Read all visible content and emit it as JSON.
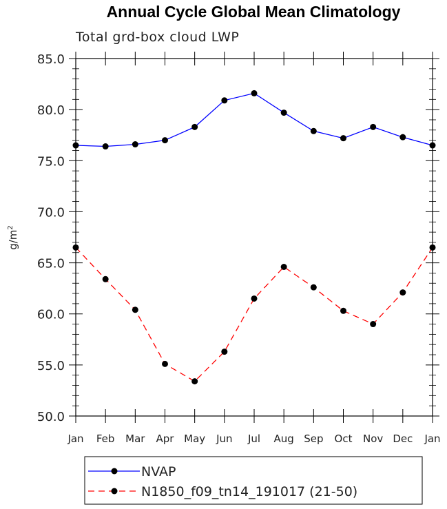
{
  "chart_data": {
    "type": "line",
    "title": "Annual Cycle Global Mean Climatology",
    "subtitle": "Total grd-box cloud LWP",
    "ylabel": "g/m",
    "ylabel_sup": "2",
    "xlabel": "",
    "categories": [
      "Jan",
      "Feb",
      "Mar",
      "Apr",
      "May",
      "Jun",
      "Jul",
      "Aug",
      "Sep",
      "Oct",
      "Nov",
      "Dec",
      "Jan"
    ],
    "ylim": [
      50.0,
      85.0
    ],
    "yticks": [
      "50.0",
      "55.0",
      "60.0",
      "65.0",
      "70.0",
      "75.0",
      "80.0",
      "85.0"
    ],
    "grid": false,
    "legend_position": "bottom",
    "series": [
      {
        "name": "NVAP",
        "color": "#0000ff",
        "dash": "solid",
        "marker": "filled-circle",
        "values": [
          76.5,
          76.4,
          76.6,
          77.0,
          78.3,
          80.9,
          81.6,
          79.7,
          77.9,
          77.2,
          78.3,
          77.3,
          76.5
        ]
      },
      {
        "name": "N1850_f09_tn14_191017 (21-50)",
        "color": "#ff0000",
        "dash": "dashed",
        "marker": "filled-circle",
        "values": [
          66.5,
          63.4,
          60.4,
          55.1,
          53.4,
          56.3,
          61.5,
          64.6,
          62.6,
          60.3,
          59.0,
          62.1,
          66.5
        ]
      }
    ]
  }
}
